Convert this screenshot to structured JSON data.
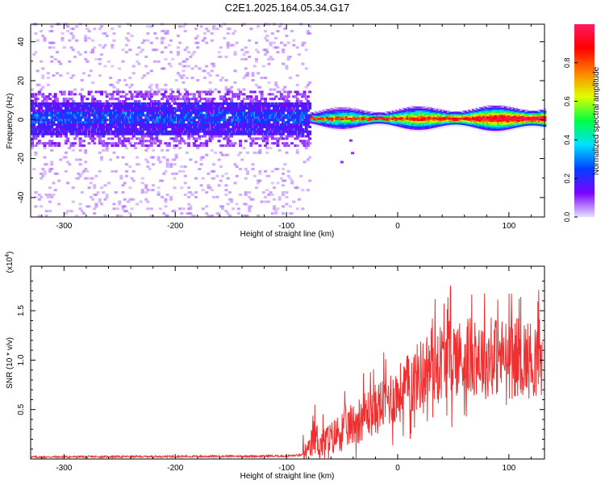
{
  "title": "C2E1.2025.164.05.34.G17",
  "chart_data": [
    {
      "type": "heatmap",
      "xlabel": "Height of straight line (km)",
      "ylabel": "Frequency (Hz)",
      "xlim": [
        -330,
        132
      ],
      "ylim": [
        -50,
        49
      ],
      "xticks": [
        -300,
        -200,
        -100,
        0,
        100
      ],
      "yticks": [
        -40,
        -20,
        0,
        20,
        40
      ],
      "colorbar": {
        "label": "Normalized spectral amplitude",
        "range": [
          0,
          1
        ],
        "ticks": [
          "0.0",
          "0.2",
          "0.4",
          "0.6",
          "0.8"
        ],
        "colormap": [
          "#e6e0ff",
          "#7a00ff",
          "#0040ff",
          "#00e0ff",
          "#00ff40",
          "#e0ff00",
          "#ff8000",
          "#ff0000",
          "#ff1a60"
        ]
      },
      "regions": [
        {
          "x_range": [
            -330,
            -80
          ],
          "note_values": "broad noisy band centered near 0 Hz, scattered low amplitude to +/-48 Hz"
        },
        {
          "x_range": [
            -80,
            132
          ],
          "note_values": "narrow band near 0 Hz with high amplitude core"
        }
      ]
    },
    {
      "type": "line",
      "xlabel": "Height of straight line (km)",
      "ylabel": "SNR (10 * v/v)",
      "yscale_label": "(x10",
      "yscale_exp": "4",
      "xlim": [
        -330,
        132
      ],
      "ylim": [
        0,
        1.95
      ],
      "xticks": [
        -300,
        -200,
        -100,
        0,
        100
      ],
      "yticks": [
        "0.5",
        "1.0",
        "1.5"
      ],
      "color": "#f03030",
      "series": [
        {
          "x": [
            -330,
            -100,
            -85,
            -80,
            -75,
            -70,
            -60,
            -50,
            -40,
            -30,
            -20,
            -10,
            0,
            10,
            20,
            30,
            40,
            50,
            60,
            70,
            80,
            90,
            100,
            110,
            120,
            130
          ],
          "y": [
            0.02,
            0.03,
            0.04,
            0.05,
            0.25,
            0.15,
            0.2,
            0.3,
            0.35,
            0.45,
            0.5,
            0.6,
            0.65,
            0.75,
            0.85,
            0.95,
            1.0,
            1.05,
            1.0,
            1.05,
            1.0,
            1.05,
            1.0,
            1.05,
            1.0,
            1.05
          ]
        }
      ]
    }
  ]
}
